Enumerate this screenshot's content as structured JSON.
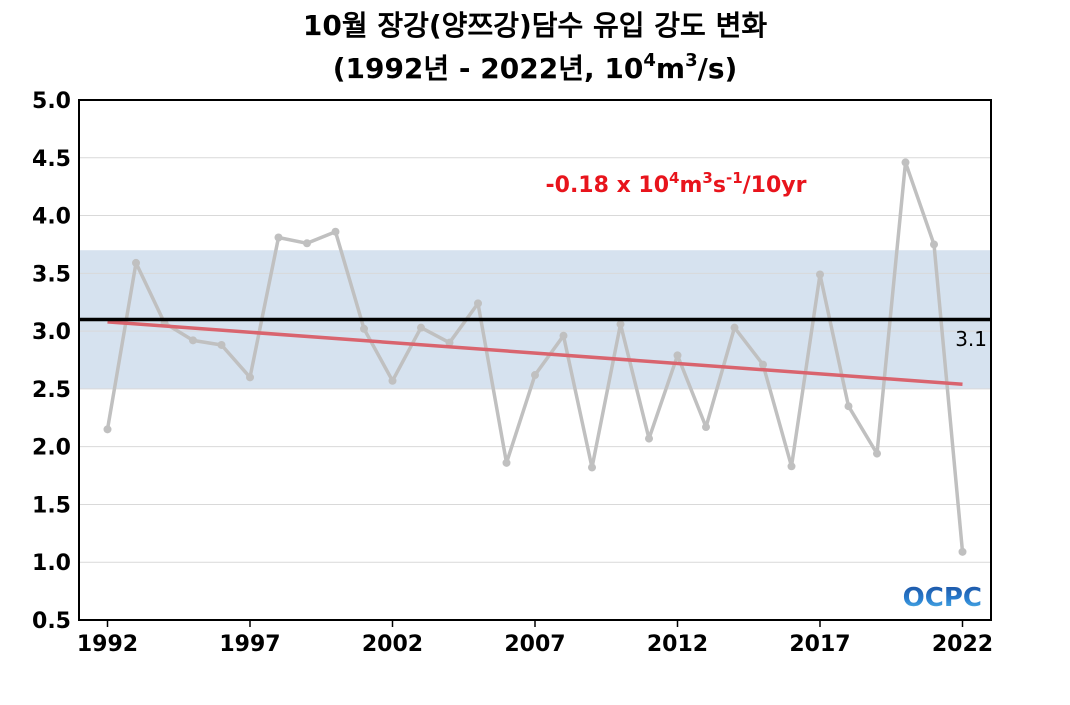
{
  "chart_data": {
    "type": "line",
    "title_line1": "10월 장강(양쯔강)담수 유입 강도 변화",
    "title_line2_pre": "(1992년 - 2022년, 10",
    "title_line2_sup1": "4",
    "title_line2_mid": "m",
    "title_line2_sup2": "3",
    "title_line2_post": "/s)",
    "x": [
      1992,
      1993,
      1994,
      1995,
      1996,
      1997,
      1998,
      1999,
      2000,
      2001,
      2002,
      2003,
      2004,
      2005,
      2006,
      2007,
      2008,
      2009,
      2010,
      2011,
      2012,
      2013,
      2014,
      2015,
      2016,
      2017,
      2018,
      2019,
      2020,
      2021,
      2022
    ],
    "series": [
      {
        "values": [
          2.15,
          3.59,
          3.07,
          2.92,
          2.88,
          2.6,
          3.81,
          3.76,
          3.86,
          3.02,
          2.57,
          3.03,
          2.9,
          3.24,
          1.86,
          2.62,
          2.96,
          1.82,
          3.06,
          2.07,
          2.79,
          2.17,
          3.03,
          2.71,
          1.83,
          3.49,
          2.35,
          1.94,
          4.46,
          3.75,
          1.09
        ],
        "color": "#c0c0c0"
      }
    ],
    "xticks": [
      1992,
      1997,
      2002,
      2007,
      2012,
      2017,
      2022
    ],
    "yticks": [
      "0.5",
      "1.0",
      "1.5",
      "2.0",
      "2.5",
      "3.0",
      "3.5",
      "4.0",
      "4.5",
      "5.0"
    ],
    "xlim": [
      1991,
      2023
    ],
    "ylim": [
      0.5,
      5.0
    ],
    "mean": 3.1,
    "mean_label": "3.1",
    "mean_color": "#000000",
    "band": [
      2.5,
      3.7
    ],
    "band_color": "#d6e2ef",
    "trend": {
      "start": [
        1992,
        3.08
      ],
      "end": [
        2022,
        2.54
      ],
      "color": "#d9646e"
    },
    "trend_label": {
      "pre": "-0.18 x 10",
      "sup1": "4",
      "m": "m",
      "sup2": "3",
      "s": "s",
      "sup3": "-1",
      "post": "/10yr",
      "color": "#e8141c"
    },
    "grid": "horizontal",
    "logo_text": "OCPC"
  }
}
